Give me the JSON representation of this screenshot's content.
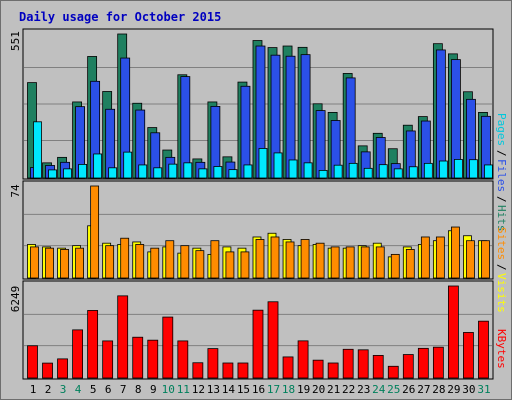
{
  "chart_data": [
    {
      "type": "bar",
      "title": "Daily usage for October 2015",
      "ymax_label": "551",
      "ylim": [
        0,
        551
      ],
      "grid": true,
      "legend": [
        "Pages",
        "Files",
        "Hits"
      ],
      "categories": [
        "1",
        "2",
        "3",
        "4",
        "5",
        "6",
        "7",
        "8",
        "9",
        "10",
        "11",
        "12",
        "13",
        "14",
        "15",
        "16",
        "17",
        "18",
        "19",
        "20",
        "21",
        "22",
        "23",
        "24",
        "25",
        "26",
        "27",
        "28",
        "29",
        "30",
        "31"
      ],
      "weekend_days": [
        "3",
        "4",
        "10",
        "11",
        "17",
        "18",
        "24",
        "25",
        "31"
      ],
      "series": [
        {
          "name": "Hits",
          "color": "#1f8060",
          "values": [
            365,
            58,
            79,
            291,
            465,
            331,
            551,
            286,
            193,
            107,
            395,
            73,
            291,
            81,
            367,
            526,
            499,
            505,
            500,
            284,
            251,
            400,
            123,
            171,
            112,
            202,
            235,
            514,
            475,
            330,
            251
          ]
        },
        {
          "name": "Files",
          "color": "#2b50e8",
          "values": [
            40,
            48,
            60,
            273,
            370,
            263,
            459,
            260,
            173,
            79,
            388,
            60,
            274,
            61,
            351,
            505,
            470,
            466,
            472,
            258,
            220,
            383,
            100,
            155,
            55,
            180,
            218,
            490,
            453,
            301,
            236
          ]
        },
        {
          "name": "Pages",
          "color": "#00e8ff",
          "values": [
            215,
            31,
            35,
            52,
            92,
            39,
            99,
            50,
            39,
            53,
            58,
            35,
            44,
            32,
            50,
            113,
            96,
            69,
            58,
            29,
            49,
            56,
            37,
            51,
            35,
            43,
            56,
            65,
            71,
            70,
            50
          ]
        }
      ]
    },
    {
      "type": "bar",
      "ymax_label": "74",
      "ylim": [
        0,
        74
      ],
      "grid": true,
      "legend": [
        "Sites",
        "Visits"
      ],
      "categories": [
        "1",
        "2",
        "3",
        "4",
        "5",
        "6",
        "7",
        "8",
        "9",
        "10",
        "11",
        "12",
        "13",
        "14",
        "15",
        "16",
        "17",
        "18",
        "19",
        "20",
        "21",
        "22",
        "23",
        "24",
        "25",
        "26",
        "27",
        "28",
        "29",
        "30",
        "31"
      ],
      "series": [
        {
          "name": "Visits",
          "color": "#ffff00",
          "values": [
            27,
            25,
            24,
            26,
            42,
            28,
            27,
            29,
            21,
            25,
            20,
            24,
            19,
            25,
            24,
            33,
            36,
            31,
            26,
            27,
            24,
            24,
            26,
            28,
            17,
            25,
            27,
            30,
            38,
            34,
            30
          ]
        },
        {
          "name": "Sites",
          "color": "#ff8c00",
          "values": [
            25,
            24,
            23,
            24,
            74,
            26,
            32,
            27,
            24,
            30,
            26,
            22,
            30,
            21,
            21,
            31,
            33,
            29,
            31,
            28,
            25,
            25,
            25,
            25,
            19,
            23,
            33,
            33,
            41,
            30,
            30
          ]
        }
      ]
    },
    {
      "type": "bar",
      "ymax_label": "6249",
      "ylim": [
        0,
        6249
      ],
      "grid": true,
      "legend": [
        "KBytes"
      ],
      "categories": [
        "1",
        "2",
        "3",
        "4",
        "5",
        "6",
        "7",
        "8",
        "9",
        "10",
        "11",
        "12",
        "13",
        "14",
        "15",
        "16",
        "17",
        "18",
        "19",
        "20",
        "21",
        "22",
        "23",
        "24",
        "25",
        "26",
        "27",
        "28",
        "29",
        "30",
        "31"
      ],
      "series": [
        {
          "name": "KBytes",
          "color": "#ff0000",
          "values": [
            2190,
            1012,
            1299,
            3269,
            4588,
            2519,
            5580,
            2770,
            2569,
            4139,
            2519,
            1036,
            1997,
            1019,
            1019,
            4607,
            5178,
            1432,
            2523,
            1211,
            1019,
            1950,
            1914,
            1534,
            796,
            1594,
            2015,
            2093,
            6249,
            3093,
            3860
          ]
        }
      ]
    }
  ],
  "weekend_color": "#00805c",
  "weekday_color": "#000000",
  "background_color": "#c0c0c0",
  "title_color": "#0000c0"
}
